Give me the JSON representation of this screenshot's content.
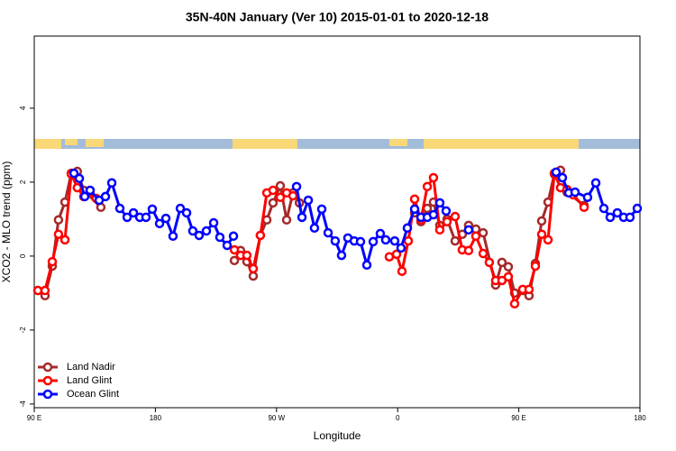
{
  "chart_data": {
    "type": "line",
    "title": "35N-40N January (Ver 10)   2015-01-01 to 2020-12-18",
    "xlabel": "Longitude",
    "ylabel": "XCO2 - MLO trend (ppm)",
    "xlim": [
      90,
      540
    ],
    "ylim": [
      -4.1,
      5.95
    ],
    "xticks": [
      {
        "value": 90,
        "label": "90 E"
      },
      180,
      {
        "value": 270,
        "label": "90 W"
      },
      {
        "value": 360,
        "label": "0"
      },
      {
        "value": 450,
        "label": "90 E"
      },
      {
        "value": 540,
        "label": "180"
      }
    ],
    "yticks": [
      -4,
      -2,
      0,
      2,
      4
    ],
    "legend": "bottom-left",
    "series": [
      {
        "name": "Land Nadir",
        "color": "#a52a2a",
        "x": [
          92.7,
          98,
          103.4,
          108,
          112.8,
          117.5,
          122,
          126.8,
          139.5,
          null,
          238.7,
          243.3,
          248,
          252.7,
          258,
          262.8,
          267.4,
          272.8,
          277.5,
          282.2,
          287,
          null,
          372.6,
          377.3,
          382,
          386.6,
          391.3,
          396.7,
          402.7,
          408,
          412.7,
          418.1,
          423.5,
          432.8,
          437.5,
          442.2,
          446.9,
          452.9,
          457.6,
          462.3,
          467,
          471.7,
          476.4,
          481,
          485.8,
          498.5
        ],
        "values": [
          -0.93,
          -1.07,
          -0.27,
          0.98,
          1.46,
          2.24,
          2.29,
          1.78,
          1.32,
          null,
          -0.12,
          0.15,
          -0.15,
          -0.54,
          0.56,
          0.98,
          1.44,
          1.9,
          0.98,
          1.71,
          1.44,
          null,
          1.17,
          0.93,
          1.29,
          1.46,
          0.83,
          1.0,
          0.41,
          0.59,
          0.83,
          0.73,
          0.63,
          -0.78,
          -0.17,
          -0.29,
          -1.0,
          -0.93,
          -1.07,
          -0.2,
          0.95,
          1.46,
          2.22,
          2.32,
          1.73,
          1.37
        ]
      },
      {
        "name": "Land Glint",
        "color": "#ff0000",
        "x": [
          92.7,
          98,
          103.4,
          108,
          112.8,
          117.5,
          122,
          126.8,
          131.4,
          136,
          null,
          238.7,
          243.3,
          248,
          252.7,
          258,
          262.8,
          267.4,
          272.8,
          277.5,
          282.2,
          null,
          353.8,
          359.2,
          363.2,
          367.9,
          372.6,
          377.3,
          382,
          386.6,
          391.3,
          396.7,
          402.7,
          408,
          412.7,
          418.1,
          423.5,
          428.1,
          432.8,
          437.5,
          442.2,
          446.9,
          452.9,
          457.6,
          462.3,
          467,
          471.7,
          476.4,
          481,
          485.8,
          490.4,
          498.5
        ],
        "values": [
          -0.93,
          -0.93,
          -0.15,
          0.59,
          0.44,
          2.22,
          1.85,
          1.61,
          1.73,
          1.56,
          null,
          0.17,
          0.02,
          0.02,
          -0.34,
          0.56,
          1.71,
          1.78,
          1.59,
          1.71,
          1.63,
          null,
          -0.02,
          0.05,
          -0.41,
          0.41,
          1.54,
          0.98,
          1.88,
          2.12,
          0.71,
          0.93,
          1.07,
          0.17,
          0.15,
          0.54,
          0.07,
          -0.17,
          -0.66,
          -0.66,
          -0.56,
          -1.29,
          -0.9,
          -0.9,
          -0.27,
          0.59,
          0.44,
          2.24,
          1.85,
          1.8,
          1.66,
          1.32
        ]
      },
      {
        "name": "Ocean Glint",
        "color": "#0000ff",
        "x": [
          119.5,
          123.5,
          127.5,
          131.5,
          138.2,
          142.9,
          147.6,
          153.6,
          159,
          163.7,
          168.4,
          173,
          177.7,
          183.1,
          187.8,
          193.1,
          198.5,
          203.2,
          207.8,
          212.5,
          217.9,
          223.3,
          227.9,
          233.3,
          238,
          null,
          284.9,
          288.9,
          293.6,
          298.2,
          303.6,
          308.3,
          313.6,
          318.3,
          323,
          327.7,
          332.4,
          337.1,
          341.8,
          347.1,
          351.1,
          357.8,
          362.5,
          367.2,
          372.6,
          377.3,
          382,
          386.6,
          391.3,
          396,
          null,
          412.7,
          null,
          477.7,
          482.4,
          487.1,
          491.8,
          501.1,
          507.2,
          513.2,
          517.9,
          523.2,
          527.9,
          532.6,
          538
        ],
        "values": [
          2.24,
          2.1,
          1.61,
          1.78,
          1.51,
          1.61,
          1.98,
          1.29,
          1.05,
          1.17,
          1.05,
          1.05,
          1.27,
          0.88,
          1.02,
          0.54,
          1.29,
          1.17,
          0.68,
          0.56,
          0.68,
          0.9,
          0.51,
          0.29,
          0.54,
          null,
          1.88,
          1.05,
          1.51,
          0.76,
          1.27,
          0.63,
          0.41,
          0.02,
          0.49,
          0.41,
          0.39,
          -0.24,
          0.39,
          0.61,
          0.44,
          0.41,
          0.22,
          0.76,
          1.27,
          1.05,
          1.05,
          1.12,
          1.44,
          1.22,
          null,
          0.71,
          null,
          2.27,
          2.12,
          1.71,
          1.73,
          1.59,
          1.98,
          1.29,
          1.05,
          1.17,
          1.05,
          1.05,
          1.29
        ]
      }
    ]
  }
}
